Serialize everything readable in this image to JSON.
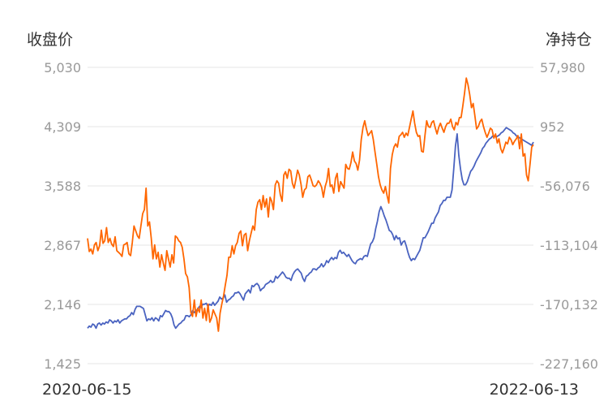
{
  "chart_data": {
    "type": "line",
    "left_axis_title": "收盘价",
    "right_axis_title": "净持仓",
    "x_start": "2020-06-15",
    "x_end": "2022-06-13",
    "y_left_ticks": [
      "5,030",
      "4,309",
      "3,588",
      "2,867",
      "2,146",
      "1,425"
    ],
    "y_right_ticks": [
      "57,980",
      "952",
      "-56,076",
      "-113,104",
      "-170,132",
      "-227,160"
    ],
    "y_left_range": [
      1425,
      5030
    ],
    "y_right_range": [
      -227160,
      57980
    ],
    "grid": true,
    "colors": {
      "price": "#ff6600",
      "position": "#4a63c0",
      "grid": "#e6e6e6"
    },
    "series": [
      {
        "axis": "left",
        "color": "#ff6600",
        "values": [
          2950,
          2790,
          2820,
          2760,
          2870,
          2900,
          2800,
          2860,
          3050,
          2890,
          2920,
          3080,
          2900,
          2950,
          2880,
          2850,
          2970,
          2800,
          2780,
          2760,
          2730,
          2870,
          2880,
          2900,
          2760,
          2740,
          2900,
          3100,
          3040,
          2980,
          2950,
          3100,
          3250,
          3300,
          3560,
          3100,
          3150,
          2950,
          2700,
          2870,
          2700,
          2780,
          2600,
          2750,
          2650,
          2560,
          2800,
          2700,
          2600,
          2750,
          2650,
          2980,
          2960,
          2920,
          2900,
          2840,
          2700,
          2520,
          2480,
          2350,
          2050,
          2000,
          2200,
          2000,
          2100,
          2050,
          2200,
          1980,
          2100,
          1950,
          2150,
          1930,
          1980,
          2080,
          2030,
          1980,
          1820,
          2040,
          2150,
          2250,
          2380,
          2500,
          2720,
          2720,
          2860,
          2760,
          2860,
          2900,
          3010,
          3040,
          2860,
          2990,
          3010,
          2800,
          2920,
          3010,
          3100,
          3050,
          3300,
          3390,
          3420,
          3300,
          3470,
          3330,
          3430,
          3210,
          3450,
          3400,
          3300,
          3600,
          3650,
          3620,
          3480,
          3400,
          3720,
          3760,
          3680,
          3790,
          3770,
          3620,
          3560,
          3660,
          3780,
          3720,
          3610,
          3450,
          3540,
          3560,
          3700,
          3720,
          3660,
          3590,
          3580,
          3600,
          3650,
          3620,
          3570,
          3450,
          3580,
          3650,
          3800,
          3580,
          3600,
          3500,
          3680,
          3740,
          3520,
          3640,
          3600,
          3560,
          3850,
          3800,
          3790,
          3870,
          4000,
          3890,
          3860,
          3780,
          3900,
          4150,
          4300,
          4380,
          4280,
          4200,
          4230,
          4260,
          4150,
          4000,
          3850,
          3700,
          3600,
          3540,
          3500,
          3580,
          3470,
          3380,
          3800,
          3970,
          4060,
          4100,
          4060,
          4190,
          4210,
          4240,
          4180,
          4230,
          4200,
          4300,
          4400,
          4500,
          4350,
          4240,
          4190,
          4200,
          4010,
          4000,
          4200,
          4380,
          4310,
          4300,
          4360,
          4380,
          4290,
          4220,
          4300,
          4350,
          4290,
          4240,
          4310,
          4350,
          4350,
          4400,
          4310,
          4270,
          4360,
          4330,
          4420,
          4420,
          4560,
          4720,
          4900,
          4820,
          4700,
          4540,
          4590,
          4440,
          4280,
          4310,
          4370,
          4400,
          4310,
          4240,
          4180,
          4230,
          4290,
          4270,
          4170,
          4220,
          4110,
          4160,
          4040,
          3990,
          4050,
          4120,
          4100,
          4180,
          4150,
          4090,
          4130,
          4160,
          4200,
          4040,
          4220,
          3950,
          3980,
          3720,
          3650,
          3850,
          4060,
          4090
        ]
      },
      {
        "axis": "right",
        "color": "#4a63c0",
        "values": [
          -193000,
          -191000,
          -192000,
          -189000,
          -190000,
          -193000,
          -189000,
          -188000,
          -190000,
          -188000,
          -189000,
          -187000,
          -188000,
          -185000,
          -186000,
          -188000,
          -186000,
          -187000,
          -185000,
          -188000,
          -186000,
          -185000,
          -184000,
          -184000,
          -182000,
          -181000,
          -178000,
          -180000,
          -175000,
          -172000,
          -172000,
          -172000,
          -173000,
          -174000,
          -180000,
          -186000,
          -184000,
          -185000,
          -183000,
          -186000,
          -183000,
          -184000,
          -186000,
          -181000,
          -182000,
          -179000,
          -176000,
          -177000,
          -177000,
          -179000,
          -183000,
          -190000,
          -193000,
          -191000,
          -189000,
          -188000,
          -186000,
          -185000,
          -181000,
          -181000,
          -182000,
          -180000,
          -176000,
          -178000,
          -176000,
          -175000,
          -172000,
          -173000,
          -170000,
          -170000,
          -169000,
          -172000,
          -170000,
          -171000,
          -168000,
          -171000,
          -169000,
          -167000,
          -163000,
          -165000,
          -164000,
          -161000,
          -168000,
          -166000,
          -165000,
          -163000,
          -162000,
          -159000,
          -159000,
          -158000,
          -160000,
          -163000,
          -166000,
          -160000,
          -158000,
          -156000,
          -159000,
          -152000,
          -153000,
          -151000,
          -150000,
          -152000,
          -157000,
          -155000,
          -154000,
          -151000,
          -150000,
          -149000,
          -147000,
          -149000,
          -148000,
          -143000,
          -145000,
          -143000,
          -141000,
          -139000,
          -141000,
          -144000,
          -145000,
          -145000,
          -147000,
          -142000,
          -139000,
          -137000,
          -136000,
          -138000,
          -140000,
          -145000,
          -148000,
          -143000,
          -142000,
          -140000,
          -139000,
          -136000,
          -136000,
          -137000,
          -135000,
          -134000,
          -131000,
          -134000,
          -132000,
          -128000,
          -130000,
          -127000,
          -125000,
          -127000,
          -125000,
          -126000,
          -120000,
          -118000,
          -121000,
          -120000,
          -122000,
          -124000,
          -122000,
          -125000,
          -128000,
          -130000,
          -131000,
          -128000,
          -127000,
          -126000,
          -127000,
          -124000,
          -123000,
          -124000,
          -118000,
          -112000,
          -110000,
          -106000,
          -97000,
          -90000,
          -81000,
          -76000,
          -80000,
          -85000,
          -89000,
          -94000,
          -99000,
          -100000,
          -103000,
          -108000,
          -104000,
          -107000,
          -106000,
          -113000,
          -110000,
          -109000,
          -114000,
          -120000,
          -125000,
          -128000,
          -126000,
          -127000,
          -124000,
          -121000,
          -118000,
          -112000,
          -106000,
          -106000,
          -103000,
          -100000,
          -96000,
          -92000,
          -92000,
          -87000,
          -84000,
          -81000,
          -75000,
          -73000,
          -70000,
          -70000,
          -67000,
          -67000,
          -67000,
          -60000,
          -40000,
          -18000,
          -6000,
          -27000,
          -40000,
          -50000,
          -55000,
          -55000,
          -52000,
          -47000,
          -42000,
          -40000,
          -37000,
          -33000,
          -30000,
          -27000,
          -24000,
          -20000,
          -18000,
          -15000,
          -13000,
          -11000,
          -10000,
          -8000,
          -8000,
          -9000,
          -8000,
          -7000,
          -5000,
          -4000,
          -2000,
          0,
          -1000,
          -2000,
          -3000,
          -5000,
          -6000,
          -8000,
          -9000,
          -10000,
          -11000,
          -12000,
          -13000,
          -14000,
          -15000,
          -16000,
          -17000,
          -14000
        ]
      }
    ]
  }
}
